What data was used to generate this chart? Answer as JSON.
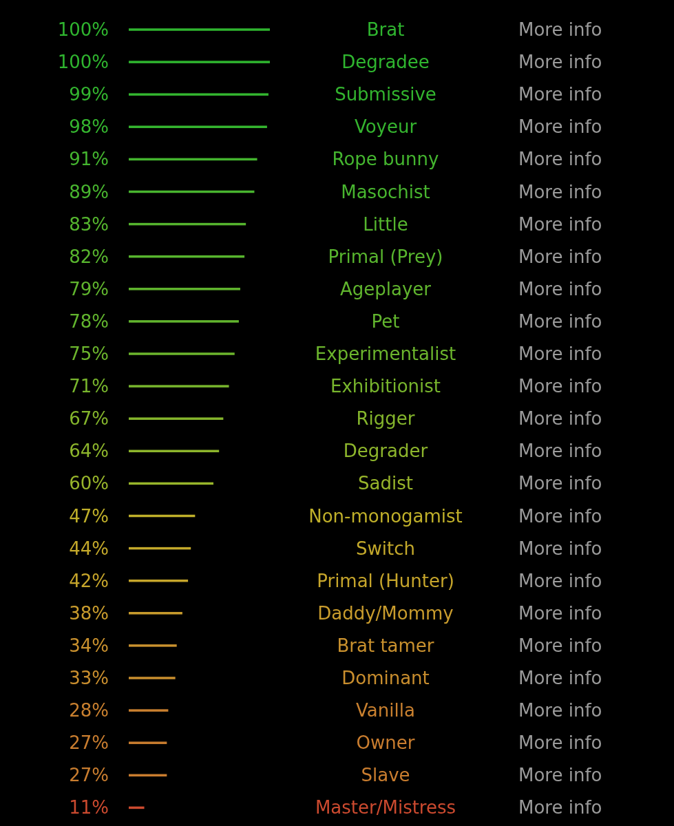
{
  "chart_data": {
    "type": "bar",
    "orientation": "horizontal",
    "xlim": [
      0,
      100
    ],
    "categories": [
      "Brat",
      "Degradee",
      "Submissive",
      "Voyeur",
      "Rope bunny",
      "Masochist",
      "Little",
      "Primal (Prey)",
      "Ageplayer",
      "Pet",
      "Experimentalist",
      "Exhibitionist",
      "Rigger",
      "Degrader",
      "Sadist",
      "Non-monogamist",
      "Switch",
      "Primal (Hunter)",
      "Daddy/Mommy",
      "Brat tamer",
      "Dominant",
      "Vanilla",
      "Owner",
      "Slave",
      "Master/Mistress"
    ],
    "values": [
      100,
      100,
      99,
      98,
      91,
      89,
      83,
      82,
      79,
      78,
      75,
      71,
      67,
      64,
      60,
      47,
      44,
      42,
      38,
      34,
      33,
      28,
      27,
      27,
      11
    ],
    "value_labels": [
      "100%",
      "100%",
      "99%",
      "98%",
      "91%",
      "89%",
      "83%",
      "82%",
      "79%",
      "78%",
      "75%",
      "71%",
      "67%",
      "64%",
      "60%",
      "47%",
      "44%",
      "42%",
      "38%",
      "34%",
      "33%",
      "28%",
      "27%",
      "27%",
      "11%"
    ],
    "colors": [
      "#2fb52f",
      "#2fb52f",
      "#33b52f",
      "#35b52f",
      "#44b52f",
      "#48b52f",
      "#55b52e",
      "#58b52e",
      "#60b52e",
      "#62b52e",
      "#6cb52d",
      "#78b52d",
      "#84b52c",
      "#8db52c",
      "#98b52b",
      "#c0b02a",
      "#c4a92b",
      "#c6a52b",
      "#c99c2d",
      "#c9912e",
      "#c98e2e",
      "#c9802f",
      "#c97d2f",
      "#c97d2f",
      "#cc4a2f"
    ],
    "annotations": [
      "More info",
      "More info",
      "More info",
      "More info",
      "More info",
      "More info",
      "More info",
      "More info",
      "More info",
      "More info",
      "More info",
      "More info",
      "More info",
      "More info",
      "More info",
      "More info",
      "More info",
      "More info",
      "More info",
      "More info",
      "More info",
      "More info",
      "More info",
      "More info",
      "More info"
    ]
  }
}
